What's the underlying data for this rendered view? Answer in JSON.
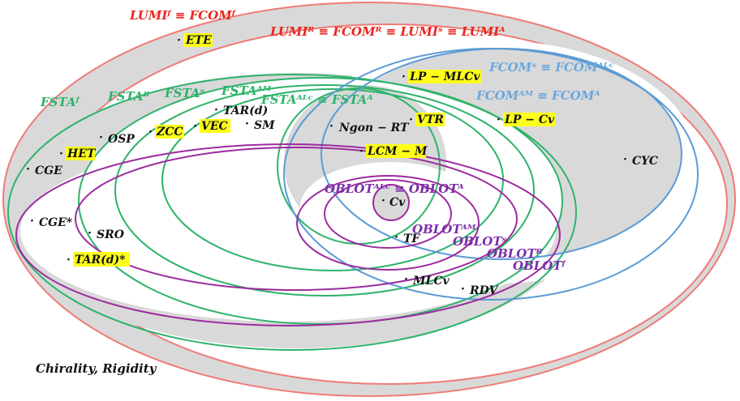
{
  "labels": {
    "lumi_f": "LUMIᶠ ≡ FCOMᶠ",
    "lumi_r": "LUMIᴿ ≡ FCOMᴿ ≡ LUMIˢ ≡ LUMIᴬ",
    "fcom_s": "FCOMˢ ≡ FCOMᴬᴸᶜ",
    "fcom_am": "FCOMᴬᴹ ≡ FCOMᴬ",
    "fsta_f": "FSTAᶠ",
    "fsta_r": "FSTAᴿ",
    "fsta_s": "FSTAˢ",
    "fsta_am": "FSTAᴬᴹ",
    "fsta_alc": "FSTAᴬᴸᶜ ≡ FSTAᴬ",
    "oblot_alc": "OBLOTᴬᴸᶜ ≡ OBLOTᴬ",
    "oblot_am": "OBLOTᴬᴹ",
    "oblot_s": "OBLOTˢ",
    "oblot_r": "OBLOTᴿ",
    "oblot_f": "OBLOTᶠ"
  },
  "problems": {
    "ete": "ETE",
    "lp_mlcv": "LP − MLCv",
    "tar_d": "TAR(d)",
    "sm": "SM",
    "vec": "VEC",
    "zcc": "ZCC",
    "osp": "OSP",
    "het": "HET",
    "cge": "CGE",
    "ngon_rt": "Ngon − RT",
    "vtr": "VTR",
    "lp_cv": "LP − Cv",
    "lcm_m": "LCM − M",
    "cyc": "CYC",
    "cge_star": "CGE*",
    "sro": "SRO",
    "tar_d_star": "TAR(d)*",
    "cv": "Cv",
    "tf": "TF",
    "mlcv": "MLCv",
    "rdv": "RDV"
  },
  "footer": "Chirality, Rigidity",
  "colors": {
    "lumi": "#ef7b78",
    "fcom": "#5b9bd5",
    "fsta": "#2db36a",
    "oblot": "#9c2ba0",
    "fill": "#d9d9d9",
    "highlight": "#ffff1a"
  }
}
